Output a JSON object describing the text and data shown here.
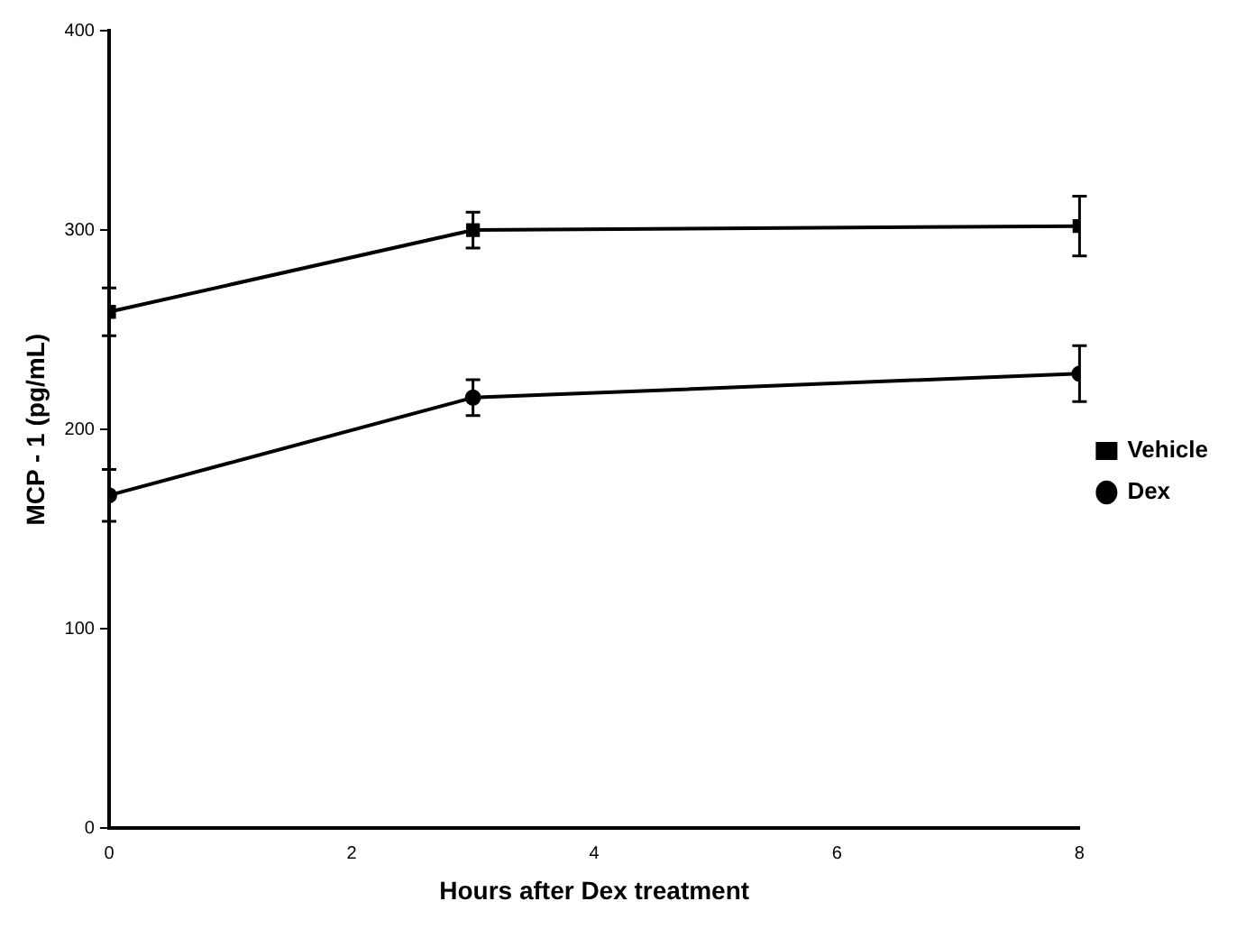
{
  "chart_data": {
    "type": "line",
    "xlabel": "Hours after Dex treatment",
    "ylabel": "MCP - 1 (pg/mL)",
    "xlim": [
      0,
      8
    ],
    "xticks": [
      0,
      2,
      4,
      6,
      8
    ],
    "ylim": [
      0,
      400
    ],
    "yticks": [
      0,
      100,
      200,
      300,
      400
    ],
    "grid": false,
    "legend": "right",
    "line_style": "solid",
    "series": [
      {
        "name": "Vehicle",
        "color": "#000000",
        "marker": "square",
        "x": [
          0,
          3,
          8
        ],
        "values": [
          259,
          300,
          302
        ],
        "errors": [
          12,
          9,
          15
        ]
      },
      {
        "name": "Dex",
        "color": "#000000",
        "marker": "circle",
        "x": [
          0,
          3,
          8
        ],
        "values": [
          167,
          216,
          228
        ],
        "errors": [
          13,
          9,
          14
        ]
      }
    ]
  }
}
